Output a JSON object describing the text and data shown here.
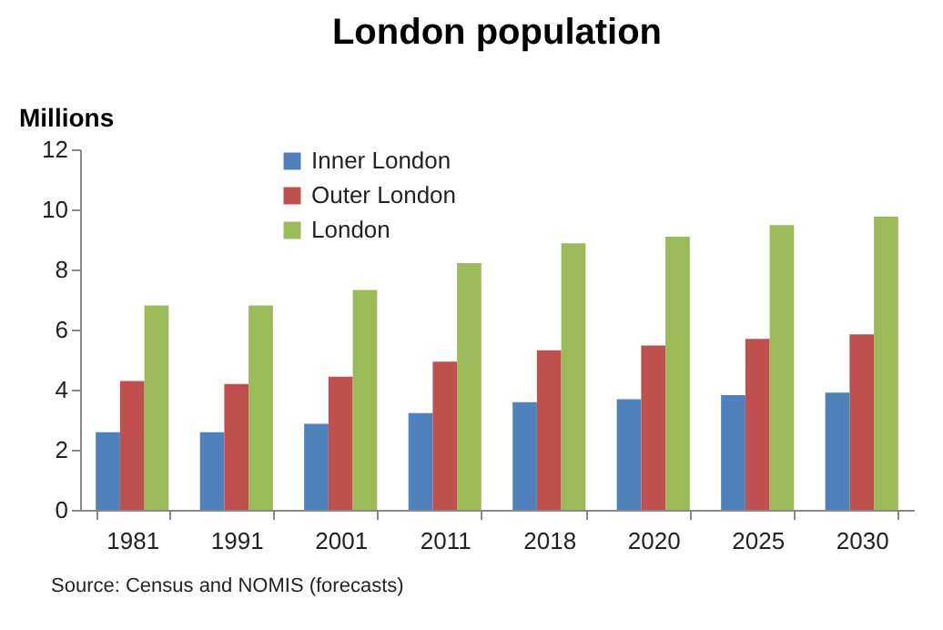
{
  "chart_data": {
    "type": "bar",
    "title": "London population",
    "ylabel": "Millions",
    "categories": [
      "1981",
      "1991",
      "2001",
      "2011",
      "2018",
      "2020",
      "2025",
      "2030"
    ],
    "series": [
      {
        "name": "Inner London",
        "color": "#4f81bd",
        "values": [
          2.58,
          2.58,
          2.86,
          3.22,
          3.58,
          3.68,
          3.82,
          3.9
        ]
      },
      {
        "name": "Outer London",
        "color": "#c0504d",
        "values": [
          4.29,
          4.19,
          4.43,
          4.93,
          5.31,
          5.47,
          5.69,
          5.84
        ]
      },
      {
        "name": "London",
        "color": "#9bbb59",
        "values": [
          6.8,
          6.8,
          7.32,
          8.21,
          8.87,
          9.09,
          9.48,
          9.76
        ]
      }
    ],
    "ylim": [
      0,
      12
    ],
    "yticks": [
      0,
      2,
      4,
      6,
      8,
      10,
      12
    ],
    "grid": false,
    "legend": "top left",
    "annotations": [
      "Source:  Census and NOMIS (forecasts)"
    ]
  }
}
